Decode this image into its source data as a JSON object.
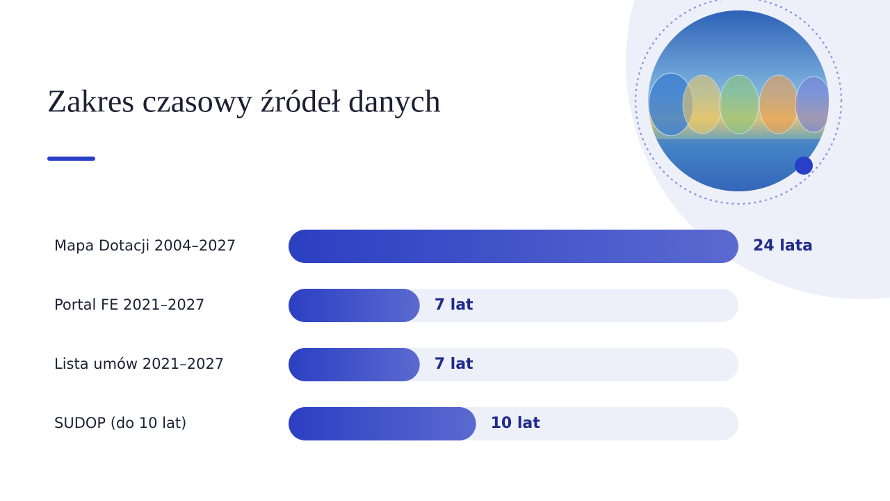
{
  "chart_data": {
    "type": "bar",
    "orientation": "horizontal",
    "title": "Zakres czasowy źródeł danych",
    "categories": [
      "Mapa Dotacji 2004–2027",
      "Portal FE 2021–2027",
      "Lista umów 2021–2027",
      "SUDOP (do 10 lat)"
    ],
    "values": [
      24,
      7,
      7,
      10
    ],
    "value_labels": [
      "24 lata",
      "7 lat",
      "7 lat",
      "10 lat"
    ],
    "color": "#2b3fc2"
  }
}
